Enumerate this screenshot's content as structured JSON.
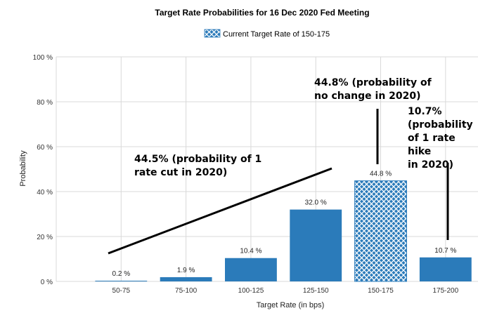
{
  "chart_data": {
    "type": "bar",
    "title": "Target Rate Probabilities for 16 Dec 2020 Fed Meeting",
    "legend": {
      "label": "Current Target Rate of 150-175",
      "placement": "top-center"
    },
    "xlabel": "Target Rate (in bps)",
    "ylabel": "Probability",
    "ylim": [
      0,
      100
    ],
    "yticks": [
      "0 %",
      "20 %",
      "40 %",
      "60 %",
      "80 %",
      "100 %"
    ],
    "grid": true,
    "categories": [
      "50-75",
      "75-100",
      "100-125",
      "125-150",
      "150-175",
      "175-200"
    ],
    "values": [
      0.2,
      1.9,
      10.4,
      32.0,
      44.8,
      10.7
    ],
    "value_labels": [
      "0.2 %",
      "1.9 %",
      "10.4 %",
      "32.0 %",
      "44.8 %",
      "10.7 %"
    ],
    "highlight_category": "150-175",
    "colors": {
      "bar": "#2b7bba",
      "highlight": "#2b7bba",
      "grid": "#d9d9d9"
    },
    "annotations": [
      {
        "lines": [
          "44.5% (probability of 1",
          "rate cut in 2020)"
        ]
      },
      {
        "lines": [
          "44.8% (probability of",
          "no change in 2020)"
        ]
      },
      {
        "lines": [
          "10.7%",
          "(probability",
          "of 1 rate hike",
          "in 2020)"
        ]
      }
    ]
  }
}
